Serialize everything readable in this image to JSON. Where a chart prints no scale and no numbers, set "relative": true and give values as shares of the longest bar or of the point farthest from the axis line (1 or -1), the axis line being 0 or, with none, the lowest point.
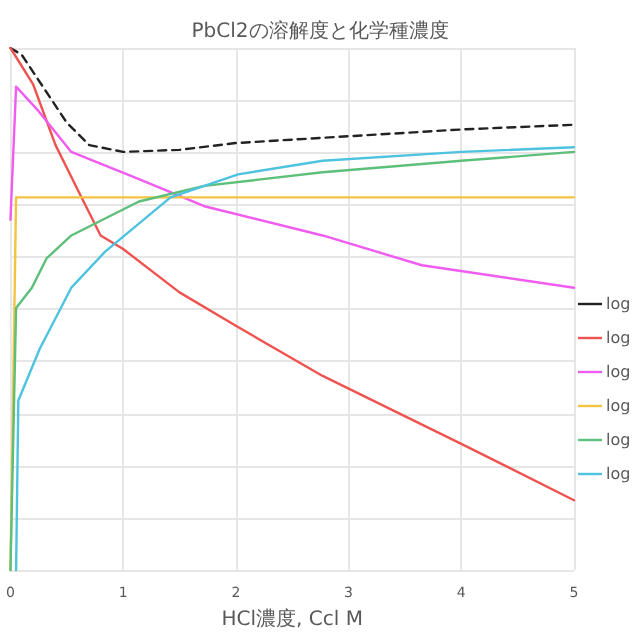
{
  "chart_data": {
    "type": "line",
    "title": "PbCl2の溶解度と化学種濃度",
    "xlabel": "HCl濃度, Ccl M",
    "relative": true,
    "xlim": [
      0,
      5
    ],
    "xticks": [
      0,
      1,
      2,
      3,
      4,
      5
    ],
    "grid": true,
    "legend": "right",
    "marker": "none",
    "series": [
      {
        "name": "log",
        "color": "#222222",
        "line_style": "dashed",
        "x": [
          0,
          0.1,
          0.3,
          0.5,
          0.7,
          1,
          1.5,
          2,
          3,
          4,
          5
        ],
        "values": [
          1.0,
          0.987,
          0.922,
          0.857,
          0.814,
          0.801,
          0.805,
          0.818,
          0.831,
          0.844,
          0.853
        ]
      },
      {
        "name": "log",
        "color": "#ef5350",
        "line_style": "solid",
        "x": [
          0,
          0.2,
          0.4,
          0.6,
          0.8,
          1,
          1.5,
          2,
          2.77,
          4,
          5
        ],
        "values": [
          1.0,
          0.931,
          0.814,
          0.727,
          0.641,
          0.615,
          0.532,
          0.468,
          0.372,
          0.242,
          0.134
        ]
      },
      {
        "name": "log",
        "color": "#f05cf0",
        "line_style": "solid",
        "x": [
          0,
          0.05,
          0.25,
          0.54,
          1.14,
          1.72,
          2.77,
          3.65,
          5
        ],
        "values": [
          0.671,
          0.926,
          0.879,
          0.801,
          0.749,
          0.697,
          0.641,
          0.584,
          0.541
        ]
      },
      {
        "name": "log",
        "color": "#f5c342",
        "line_style": "solid",
        "x": [
          0,
          0.05,
          5
        ],
        "values": [
          0,
          0.714,
          0.714
        ]
      },
      {
        "name": "log",
        "color": "#5cbf7a",
        "line_style": "solid",
        "x": [
          0,
          0.05,
          0.19,
          0.32,
          0.54,
          1.14,
          1.72,
          2.77,
          4,
          5
        ],
        "values": [
          0,
          0.502,
          0.541,
          0.597,
          0.641,
          0.706,
          0.736,
          0.762,
          0.784,
          0.801
        ]
      },
      {
        "name": "log",
        "color": "#4ec3e0",
        "line_style": "solid",
        "x": [
          0.05,
          0.07,
          0.26,
          0.54,
          0.84,
          1.42,
          2.02,
          2.77,
          4,
          5
        ],
        "values": [
          0,
          0.325,
          0.424,
          0.541,
          0.61,
          0.714,
          0.758,
          0.784,
          0.801,
          0.81
        ]
      }
    ]
  }
}
